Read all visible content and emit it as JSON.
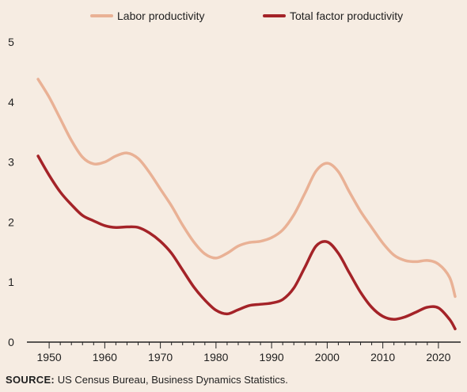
{
  "chart_data": {
    "type": "line",
    "title": "",
    "xlabel": "",
    "ylabel": "",
    "xlim": [
      1946,
      2024
    ],
    "ylim": [
      0,
      5
    ],
    "yticks": [
      0,
      1,
      2,
      3,
      4,
      5
    ],
    "xticks": [
      1950,
      1960,
      1970,
      1980,
      1990,
      2000,
      2010,
      2020
    ],
    "grid": false,
    "legend_position": "top",
    "series": [
      {
        "name": "Labor productivity",
        "color": "#e9b195",
        "x": [
          1948,
          1950,
          1952,
          1954,
          1956,
          1958,
          1960,
          1962,
          1964,
          1966,
          1968,
          1970,
          1972,
          1974,
          1976,
          1978,
          1980,
          1982,
          1984,
          1986,
          1988,
          1990,
          1992,
          1994,
          1996,
          1998,
          2000,
          2002,
          2004,
          2006,
          2008,
          2010,
          2012,
          2014,
          2016,
          2018,
          2020,
          2022,
          2023
        ],
        "values": [
          4.38,
          4.08,
          3.72,
          3.36,
          3.08,
          2.97,
          3.0,
          3.1,
          3.15,
          3.06,
          2.83,
          2.55,
          2.27,
          1.95,
          1.67,
          1.47,
          1.4,
          1.48,
          1.6,
          1.66,
          1.68,
          1.74,
          1.87,
          2.12,
          2.48,
          2.85,
          2.98,
          2.84,
          2.5,
          2.18,
          1.91,
          1.65,
          1.45,
          1.36,
          1.34,
          1.36,
          1.3,
          1.08,
          0.76
        ]
      },
      {
        "name": "Total factor productivity",
        "color": "#a42328",
        "x": [
          1948,
          1950,
          1952,
          1954,
          1956,
          1958,
          1960,
          1962,
          1964,
          1966,
          1968,
          1970,
          1972,
          1974,
          1976,
          1978,
          1980,
          1982,
          1984,
          1986,
          1988,
          1990,
          1992,
          1994,
          1996,
          1998,
          2000,
          2002,
          2004,
          2006,
          2008,
          2010,
          2012,
          2014,
          2016,
          2018,
          2020,
          2022,
          2023
        ],
        "values": [
          3.1,
          2.78,
          2.5,
          2.29,
          2.11,
          2.02,
          1.94,
          1.91,
          1.92,
          1.91,
          1.82,
          1.68,
          1.48,
          1.2,
          0.92,
          0.7,
          0.53,
          0.47,
          0.54,
          0.61,
          0.63,
          0.65,
          0.71,
          0.9,
          1.25,
          1.6,
          1.67,
          1.48,
          1.15,
          0.83,
          0.58,
          0.43,
          0.38,
          0.42,
          0.5,
          0.58,
          0.57,
          0.38,
          0.22
        ]
      }
    ]
  },
  "source": {
    "label": "SOURCE:",
    "text": "US Census Bureau, Business Dynamics Statistics."
  }
}
